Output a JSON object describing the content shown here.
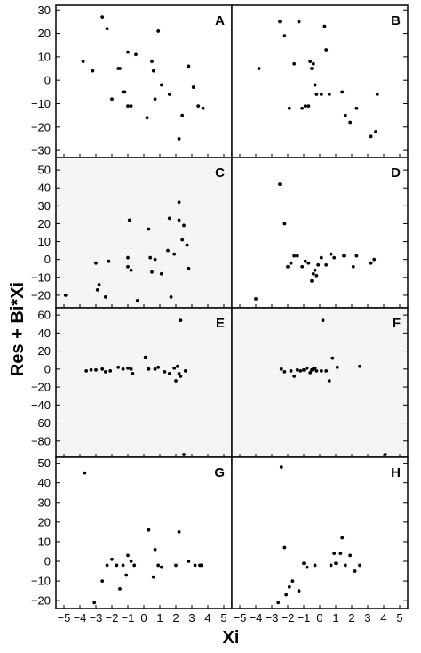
{
  "figure": {
    "ylabel": "Res + Bi*Xi",
    "xlabel": "Xi",
    "x_ticks": [
      -5,
      -4,
      -3,
      -2,
      -1,
      0,
      1,
      2,
      3,
      4,
      5
    ]
  },
  "chart_data": [
    {
      "type": "scatter",
      "title": "A",
      "xlim": [
        -5.5,
        5.5
      ],
      "ylim": [
        -33,
        32
      ],
      "y_ticks": [
        30,
        20,
        10,
        0,
        -10,
        -20,
        -30
      ],
      "background": "#ffffff",
      "x": [
        -3.8,
        -3.2,
        -2.6,
        -2.3,
        -2.0,
        -1.6,
        -1.5,
        -1.3,
        -1.2,
        -1.0,
        -1.0,
        -0.8,
        -0.5,
        0.2,
        0.5,
        0.6,
        0.7,
        0.9,
        1.1,
        1.6,
        2.2,
        2.4,
        2.8,
        3.1,
        3.4,
        3.7
      ],
      "y": [
        8,
        4,
        27,
        22,
        -8,
        5,
        5,
        -5,
        -5,
        12,
        -11,
        -11,
        11,
        -16,
        8,
        4,
        -8,
        21,
        -2,
        -6,
        -25,
        -15,
        6,
        -3,
        -11,
        -12
      ]
    },
    {
      "type": "scatter",
      "title": "B",
      "xlim": [
        -5.5,
        5.5
      ],
      "ylim": [
        -33,
        32
      ],
      "y_ticks": [
        30,
        20,
        10,
        0,
        -10,
        -20,
        -30
      ],
      "background": "#ffffff",
      "x": [
        -3.8,
        -2.5,
        -2.2,
        -1.9,
        -1.6,
        -1.3,
        -1.1,
        -0.9,
        -0.7,
        -0.6,
        -0.5,
        -0.4,
        -0.3,
        -0.2,
        0.1,
        0.3,
        0.4,
        0.6,
        1.4,
        1.6,
        1.9,
        2.3,
        3.2,
        3.5,
        3.6
      ],
      "y": [
        5,
        25,
        19,
        -12,
        7,
        25,
        -12,
        -11,
        -11,
        8,
        5,
        7,
        -2,
        -6,
        -6,
        23,
        13,
        -6,
        -5,
        -15,
        -18,
        -12,
        -24,
        -22,
        -6
      ]
    },
    {
      "type": "scatter",
      "title": "C",
      "xlim": [
        -5.5,
        5.5
      ],
      "ylim": [
        -27,
        57
      ],
      "y_ticks": [
        50,
        40,
        30,
        20,
        10,
        0,
        -10,
        -20
      ],
      "background": "#f5f5f5",
      "x": [
        -4.9,
        -3.0,
        -2.9,
        -2.8,
        -2.4,
        -2.2,
        -1.0,
        -1.0,
        -0.9,
        -0.8,
        -0.4,
        0.3,
        0.4,
        0.5,
        0.7,
        1.1,
        1.5,
        1.6,
        1.7,
        1.9,
        2.2,
        2.2,
        2.4,
        2.5,
        2.7,
        2.8
      ],
      "y": [
        -20,
        -2,
        -17,
        -14,
        -21,
        -1,
        1,
        -4,
        22,
        -6,
        -23,
        17,
        1,
        -7,
        0,
        -8,
        5,
        23,
        -21,
        3,
        32,
        22,
        11,
        19,
        8,
        -5
      ]
    },
    {
      "type": "scatter",
      "title": "D",
      "xlim": [
        -5.5,
        5.5
      ],
      "ylim": [
        -27,
        57
      ],
      "y_ticks": [
        50,
        40,
        30,
        20,
        10,
        0,
        -10,
        -20
      ],
      "background": "#ffffff",
      "x": [
        -4.0,
        -2.5,
        -2.2,
        -2.0,
        -1.8,
        -1.6,
        -1.4,
        -1.1,
        -0.9,
        -0.7,
        -0.5,
        -0.4,
        -0.3,
        -0.2,
        -0.1,
        0.1,
        0.4,
        0.7,
        0.9,
        1.5,
        2.1,
        2.3,
        3.2,
        3.4
      ],
      "y": [
        -22,
        42,
        20,
        -4,
        -2,
        2,
        2,
        -4,
        -1,
        -2,
        -12,
        -8,
        -6,
        -9,
        -3,
        1,
        -3,
        3,
        1,
        2,
        -4,
        2,
        -2,
        0
      ]
    },
    {
      "type": "scatter",
      "title": "E",
      "xlim": [
        -5.5,
        5.5
      ],
      "ylim": [
        -98,
        68
      ],
      "y_ticks": [
        60,
        40,
        20,
        0,
        -20,
        -40,
        -60,
        -80
      ],
      "background": "#f5f5f5",
      "x": [
        -3.6,
        -3.3,
        -3.0,
        -2.6,
        -2.4,
        -2.1,
        -1.6,
        -1.3,
        -1.0,
        -0.8,
        -0.7,
        0.1,
        0.3,
        0.7,
        0.9,
        1.3,
        1.6,
        1.9,
        2.0,
        2.1,
        2.2,
        2.3,
        2.3,
        2.5,
        2.6
      ],
      "y": [
        -2,
        -1,
        -1,
        0,
        -3,
        -2,
        2,
        0,
        1,
        0,
        -5,
        13,
        0,
        0,
        2,
        -3,
        -5,
        1,
        -13,
        3,
        -5,
        -8,
        54,
        -95,
        -2
      ]
    },
    {
      "type": "scatter",
      "title": "F",
      "xlim": [
        -5.5,
        5.5
      ],
      "ylim": [
        -98,
        68
      ],
      "y_ticks": [
        60,
        40,
        20,
        0,
        -20,
        -40,
        -60,
        -80
      ],
      "background": "#f5f5f5",
      "x": [
        -2.4,
        -2.2,
        -1.8,
        -1.6,
        -1.4,
        -1.2,
        -1.0,
        -0.8,
        -0.6,
        -0.5,
        -0.4,
        -0.3,
        -0.2,
        0.1,
        0.2,
        0.4,
        0.6,
        0.8,
        1.1,
        2.5,
        4.1
      ],
      "y": [
        0,
        -3,
        -2,
        -8,
        -1,
        -2,
        -1,
        1,
        -4,
        -1,
        0,
        1,
        -2,
        -2,
        54,
        -2,
        -13,
        12,
        2,
        3,
        -95
      ]
    },
    {
      "type": "scatter",
      "title": "G",
      "xlim": [
        -5.5,
        5.5
      ],
      "ylim": [
        -24,
        53
      ],
      "y_ticks": [
        50,
        40,
        30,
        20,
        10,
        0,
        -10,
        -20
      ],
      "background": "#ffffff",
      "x": [
        -3.7,
        -3.1,
        -2.6,
        -2.3,
        -2.0,
        -1.7,
        -1.5,
        -1.3,
        -1.1,
        -1.0,
        -0.8,
        -0.6,
        0.3,
        0.6,
        0.7,
        0.9,
        1.1,
        2.0,
        2.2,
        2.8,
        3.2,
        3.5,
        3.6
      ],
      "y": [
        45,
        -21,
        -10,
        -2,
        1,
        -2,
        -14,
        -2,
        -7,
        3,
        0,
        -2,
        16,
        -8,
        6,
        -2,
        -3,
        -2,
        15,
        0,
        -2,
        -2,
        -2
      ]
    },
    {
      "type": "scatter",
      "title": "H",
      "xlim": [
        -5.5,
        5.5
      ],
      "ylim": [
        -24,
        53
      ],
      "y_ticks": [
        50,
        40,
        30,
        20,
        10,
        0,
        -10,
        -20
      ],
      "background": "#ffffff",
      "x": [
        -2.6,
        -2.4,
        -2.2,
        -2.1,
        -1.9,
        -1.7,
        -1.3,
        -1.0,
        -0.8,
        -0.3,
        0.7,
        0.9,
        1.0,
        1.3,
        1.4,
        1.6,
        1.9,
        2.2,
        2.5
      ],
      "y": [
        -21,
        48,
        7,
        -17,
        -13,
        -10,
        -15,
        -1,
        -3,
        -2,
        -2,
        4,
        -1,
        4,
        12,
        -2,
        3,
        -5,
        -2
      ]
    }
  ]
}
